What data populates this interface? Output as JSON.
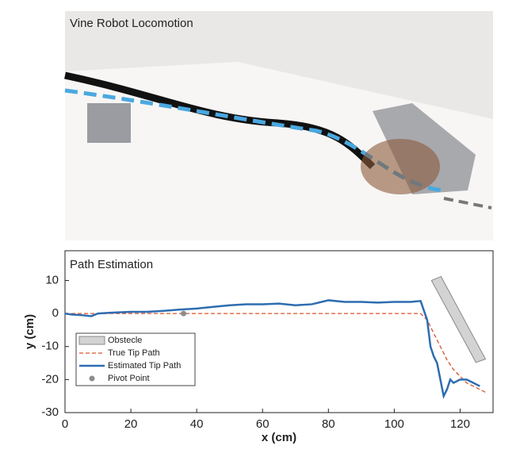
{
  "photo": {
    "title": "Vine Robot Locomotion"
  },
  "chart_data": {
    "type": "line",
    "title": "Path Estimation",
    "xlabel": "x (cm)",
    "ylabel": "y (cm)",
    "xlim": [
      0,
      130
    ],
    "ylim": [
      -30,
      19
    ],
    "xticks": [
      0,
      20,
      40,
      60,
      80,
      100,
      120
    ],
    "yticks": [
      10,
      0,
      -10,
      -20,
      -30
    ],
    "legend": "lower left",
    "obstacle": {
      "name": "Obstecle",
      "color": "#d3d3d3",
      "x": [
        111.3,
        114.2,
        127.7,
        124.8
      ],
      "y": [
        10,
        11.2,
        -13.8,
        -14.8
      ]
    },
    "series": [
      {
        "name": "True Tip Path",
        "color": "#d9542b",
        "style": "dashed",
        "x": [
          0,
          108,
          110,
          112,
          114,
          116,
          118,
          120,
          122,
          124,
          126,
          128
        ],
        "values": [
          0,
          0,
          -2,
          -6,
          -10,
          -14,
          -17,
          -19,
          -21,
          -22,
          -23,
          -24
        ]
      },
      {
        "name": "Estimated Tip Path",
        "color": "#2e6db0",
        "style": "solid",
        "x": [
          0,
          2,
          5,
          8,
          10,
          15,
          20,
          25,
          30,
          35,
          40,
          45,
          50,
          55,
          60,
          65,
          70,
          75,
          80,
          85,
          90,
          95,
          100,
          105,
          108,
          110,
          111,
          112,
          113,
          114,
          115,
          116,
          117,
          118,
          120,
          122,
          124,
          126
        ],
        "values": [
          0,
          -0.3,
          -0.5,
          -0.8,
          0,
          0.3,
          0.5,
          0.5,
          0.8,
          1.2,
          1.5,
          2,
          2.5,
          2.8,
          2.8,
          3,
          2.5,
          2.8,
          4,
          3.5,
          3.5,
          3.3,
          3.5,
          3.5,
          3.8,
          -2,
          -10,
          -13,
          -15,
          -20,
          -25,
          -23,
          -20,
          -21,
          -20,
          -20,
          -21,
          -22
        ]
      },
      {
        "name": "Pivot Point",
        "color": "#8c8c8c",
        "style": "marker",
        "x": [
          36
        ],
        "values": [
          0
        ]
      }
    ]
  }
}
